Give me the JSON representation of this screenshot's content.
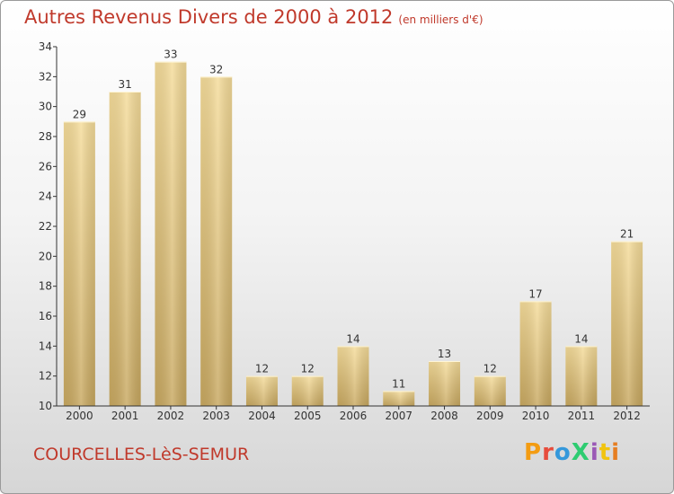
{
  "title": {
    "main": "Autres Revenus Divers de 2000 à 2012",
    "unit": "(en milliers d'€)"
  },
  "commune": "COURCELLES-LèS-SEMUR",
  "logo": {
    "text": "ProXiti",
    "colors": [
      "#f39c12",
      "#e74c3c",
      "#3498db",
      "#2ecc71",
      "#9b59b6",
      "#f1c40f",
      "#e67e22"
    ]
  },
  "colors": {
    "title": "#c0392b",
    "bar_light": "#f5dc9a",
    "bar_dark": "#c8a860",
    "axis": "#333333",
    "grid_tick": "#555555"
  },
  "chart_data": {
    "type": "bar",
    "categories": [
      "2000",
      "2001",
      "2002",
      "2003",
      "2004",
      "2005",
      "2006",
      "2007",
      "2008",
      "2009",
      "2010",
      "2011",
      "2012"
    ],
    "values": [
      29,
      31,
      33,
      32,
      12,
      12,
      14,
      11,
      13,
      12,
      17,
      14,
      21
    ],
    "title": "Autres Revenus Divers de 2000 à 2012",
    "xlabel": "",
    "ylabel": "",
    "ylim": [
      10,
      34
    ],
    "yticks": [
      10,
      12,
      14,
      16,
      18,
      20,
      22,
      24,
      26,
      28,
      30,
      32,
      34
    ],
    "grid": false,
    "data_labels": true
  }
}
